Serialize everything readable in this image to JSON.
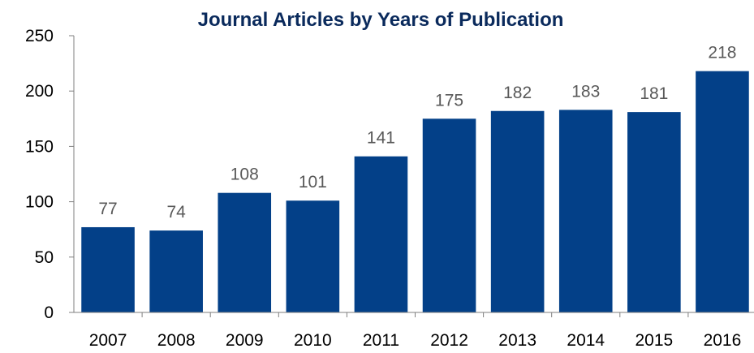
{
  "chart_data": {
    "type": "bar",
    "title": "Journal Articles by Years of Publication",
    "xlabel": "",
    "ylabel": "",
    "categories": [
      "2007",
      "2008",
      "2009",
      "2010",
      "2011",
      "2012",
      "2013",
      "2014",
      "2015",
      "2016"
    ],
    "values": [
      77,
      74,
      108,
      101,
      141,
      175,
      182,
      183,
      181,
      218
    ],
    "data_labels": [
      "77",
      "74",
      "108",
      "101",
      "141",
      "175",
      "182",
      "183",
      "181",
      "218"
    ],
    "ylim": [
      0,
      250
    ],
    "yticks": [
      "0",
      "50",
      "100",
      "150",
      "200",
      "250"
    ],
    "grid": false,
    "legend": "none",
    "colors": {
      "bar": "#034088",
      "title": "#0a2a5c",
      "data_label": "#595959",
      "axis": "#7f7f7f"
    }
  }
}
